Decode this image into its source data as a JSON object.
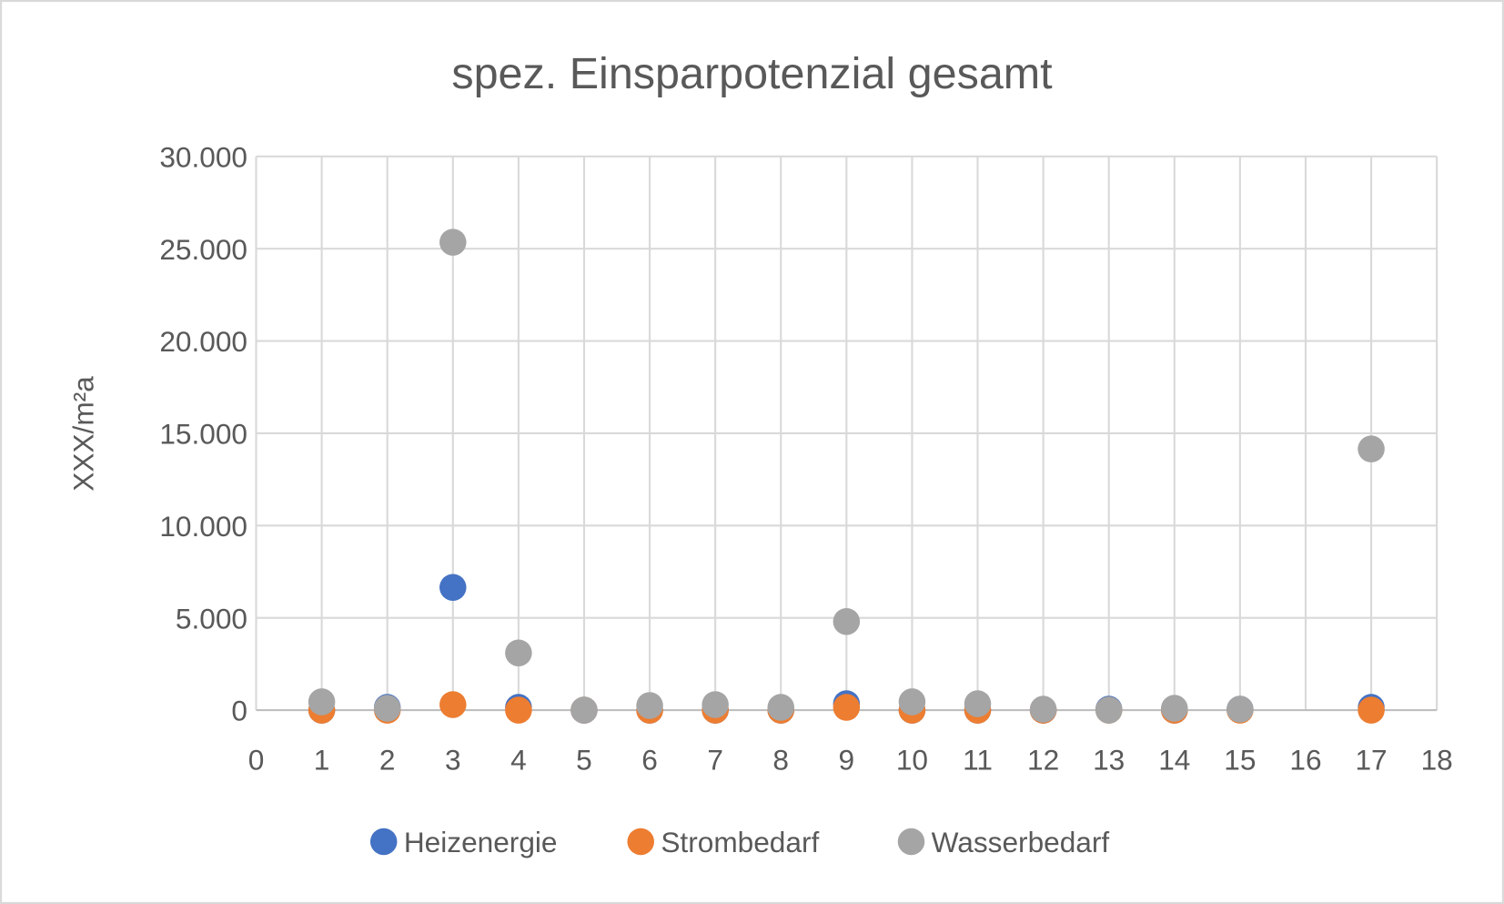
{
  "chart_data": {
    "type": "scatter",
    "title": "spez. Einsparpotenzial gesamt",
    "xlabel": "",
    "ylabel": "XXX/m²a",
    "xlim": [
      0,
      18
    ],
    "ylim": [
      0,
      30000
    ],
    "xticks": [
      "0",
      "1",
      "2",
      "3",
      "4",
      "5",
      "6",
      "7",
      "8",
      "9",
      "10",
      "11",
      "12",
      "13",
      "14",
      "15",
      "16",
      "17",
      "18"
    ],
    "yticks": [
      "0",
      "5.000",
      "10.000",
      "15.000",
      "20.000",
      "25.000",
      "30.000"
    ],
    "grid": true,
    "legend_position": "bottom",
    "x": [
      1,
      2,
      3,
      4,
      5,
      6,
      7,
      8,
      9,
      10,
      11,
      12,
      13,
      14,
      15,
      17
    ],
    "series": [
      {
        "name": "Heizenergie",
        "color": "#4472C4",
        "values": [
          0,
          150,
          6650,
          150,
          0,
          0,
          0,
          0,
          350,
          0,
          0,
          0,
          50,
          0,
          50,
          150
        ]
      },
      {
        "name": "Strombedarf",
        "color": "#ED7D31",
        "values": [
          0,
          0,
          300,
          0,
          0,
          0,
          0,
          0,
          150,
          0,
          0,
          0,
          0,
          0,
          0,
          0
        ]
      },
      {
        "name": "Wasserbedarf",
        "color": "#A5A5A5",
        "values": [
          450,
          100,
          25350,
          3100,
          0,
          250,
          300,
          150,
          4800,
          450,
          350,
          50,
          0,
          100,
          50,
          14150
        ]
      }
    ]
  }
}
